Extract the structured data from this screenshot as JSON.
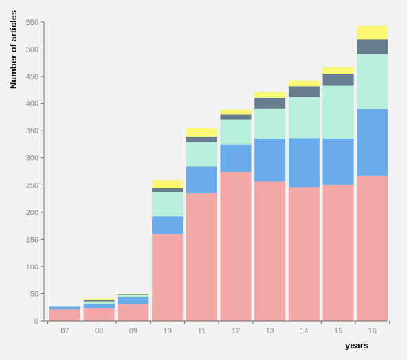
{
  "chart_data": {
    "type": "bar",
    "stacked": true,
    "categories": [
      "07",
      "08",
      "09",
      "10",
      "11",
      "12",
      "13",
      "14",
      "15",
      "16"
    ],
    "xlabel": "years",
    "ylabel": "Number of articles",
    "ylim": [
      0,
      550
    ],
    "yticks": [
      0,
      50,
      100,
      150,
      200,
      250,
      300,
      350,
      400,
      450,
      500,
      550
    ],
    "grid": false,
    "legend": "none",
    "series": [
      {
        "color": "#f4a7a7",
        "values": [
          21,
          23,
          31,
          160,
          235,
          274,
          256,
          246,
          250,
          267
        ]
      },
      {
        "color": "#69abeb",
        "values": [
          5,
          8,
          12,
          32,
          49,
          50,
          79,
          90,
          85,
          123
        ]
      },
      {
        "color": "#b7eedc",
        "values": [
          1,
          5,
          5,
          45,
          45,
          47,
          56,
          76,
          98,
          101
        ]
      },
      {
        "color": "#677c8d",
        "values": [
          0,
          3,
          1,
          7,
          10,
          9,
          20,
          20,
          22,
          27
        ]
      },
      {
        "color": "#faf773",
        "values": [
          0,
          2,
          1,
          15,
          15,
          9,
          10,
          10,
          12,
          25
        ]
      }
    ]
  }
}
